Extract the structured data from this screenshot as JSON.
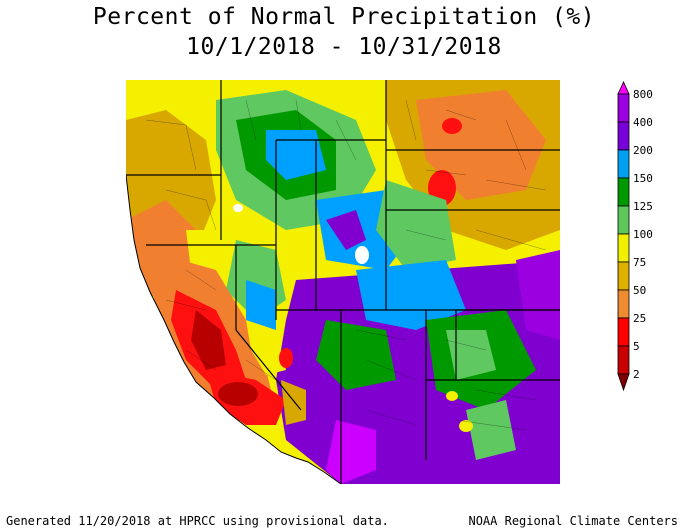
{
  "title_line1": "Percent of Normal Precipitation (%)",
  "title_line2": "10/1/2018 - 10/31/2018",
  "footer_left": "Generated 11/20/2018 at HPRCC using provisional data.",
  "footer_right": "NOAA Regional Climate Centers",
  "legend": {
    "labels": [
      "800",
      "400",
      "200",
      "150",
      "125",
      "100",
      "75",
      "50",
      "25",
      "5",
      "2"
    ],
    "colors": [
      "#ff00ff",
      "#9b00e0",
      "#7800d8",
      "#00a0f0",
      "#009a00",
      "#5cc85c",
      "#f0f000",
      "#e0b000",
      "#f08c30",
      "#ff0000",
      "#c80000",
      "#800000"
    ]
  },
  "palette": {
    "gt400": "#cc00ff",
    "p200_400": "#8000d0",
    "p150_200": "#00a0ff",
    "p125_150": "#009a00",
    "p100_125": "#60c860",
    "p75_100": "#f5f000",
    "p50_75": "#d8a800",
    "p25_50": "#f08030",
    "p5_25": "#ff1010",
    "p2_5": "#b80000"
  }
}
